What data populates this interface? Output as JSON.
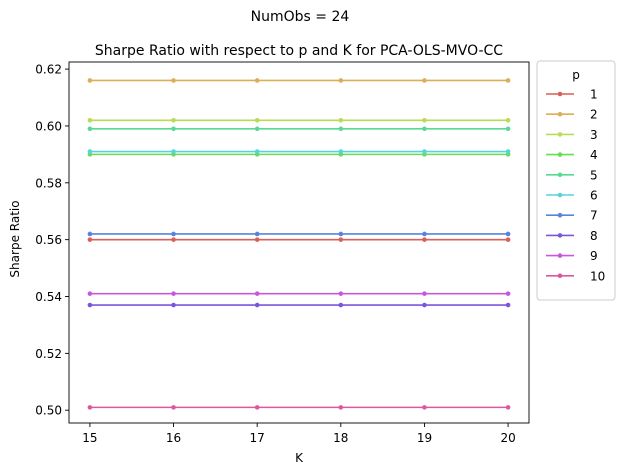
{
  "chart_data": {
    "type": "line",
    "suptitle": "NumObs = 24",
    "title": "Sharpe Ratio with respect to p and K for PCA-OLS-MVO-CC",
    "xlabel": "K",
    "ylabel": "Sharpe Ratio",
    "x": [
      15,
      16,
      17,
      18,
      19,
      20
    ],
    "xlim": [
      14.75,
      20.25
    ],
    "ylim": [
      0.4955,
      0.6225
    ],
    "yticks": [
      0.5,
      0.52,
      0.54,
      0.56,
      0.58,
      0.6,
      0.62
    ],
    "ytick_labels": [
      "0.50",
      "0.52",
      "0.54",
      "0.56",
      "0.58",
      "0.60",
      "0.62"
    ],
    "xtick_labels": [
      "15",
      "16",
      "17",
      "18",
      "19",
      "20"
    ],
    "grid": false,
    "legend": {
      "title": "p",
      "placement": "outside-right-top"
    },
    "series": [
      {
        "name": "1",
        "color": "#db5f57",
        "values": [
          0.56,
          0.56,
          0.56,
          0.56,
          0.56,
          0.56
        ]
      },
      {
        "name": "2",
        "color": "#dbae57",
        "values": [
          0.616,
          0.616,
          0.616,
          0.616,
          0.616,
          0.616
        ]
      },
      {
        "name": "3",
        "color": "#b9db57",
        "values": [
          0.602,
          0.602,
          0.602,
          0.602,
          0.602,
          0.602
        ]
      },
      {
        "name": "4",
        "color": "#69db57",
        "values": [
          0.59,
          0.59,
          0.59,
          0.59,
          0.59,
          0.59
        ]
      },
      {
        "name": "5",
        "color": "#57db94",
        "values": [
          0.599,
          0.599,
          0.599,
          0.599,
          0.599,
          0.599
        ]
      },
      {
        "name": "6",
        "color": "#57d3db",
        "values": [
          0.591,
          0.591,
          0.591,
          0.591,
          0.591,
          0.591
        ]
      },
      {
        "name": "7",
        "color": "#5784db",
        "values": [
          0.562,
          0.562,
          0.562,
          0.562,
          0.562,
          0.562
        ]
      },
      {
        "name": "8",
        "color": "#7957db",
        "values": [
          0.537,
          0.537,
          0.537,
          0.537,
          0.537,
          0.537
        ]
      },
      {
        "name": "9",
        "color": "#c957db",
        "values": [
          0.541,
          0.541,
          0.541,
          0.541,
          0.541,
          0.541
        ]
      },
      {
        "name": "10",
        "color": "#db579e",
        "values": [
          0.501,
          0.501,
          0.501,
          0.501,
          0.501,
          0.501
        ]
      }
    ]
  }
}
